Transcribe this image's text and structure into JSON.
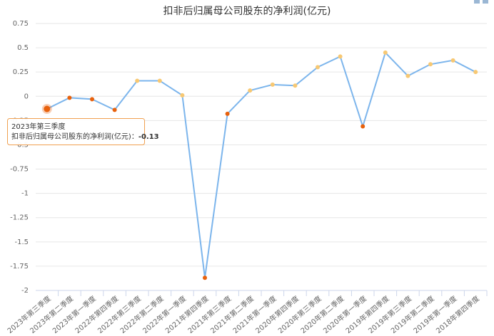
{
  "chart_data": {
    "type": "line",
    "title": "扣非后归属母公司股东的净利润(亿元)",
    "categories": [
      "2023年第三季度",
      "2023年第二季度",
      "2023年第一季度",
      "2022年第四季度",
      "2022年第三季度",
      "2022年第二季度",
      "2022年第一季度",
      "2021年第四季度",
      "2021年第三季度",
      "2021年第二季度",
      "2021年第一季度",
      "2020年第四季度",
      "2020年第三季度",
      "2020年第二季度",
      "2020年第一季度",
      "2019年第四季度",
      "2019年第三季度",
      "2019年第二季度",
      "2019年第一季度",
      "2018年第四季度"
    ],
    "series": [
      {
        "name": "扣非后归属母公司股东的净利润(亿元)",
        "color": "#7cb5ec",
        "values": [
          -0.13,
          -0.015,
          -0.03,
          -0.14,
          0.16,
          0.16,
          0.01,
          -1.87,
          -0.18,
          0.06,
          0.12,
          0.11,
          0.3,
          0.41,
          -0.31,
          0.45,
          0.21,
          0.33,
          0.37,
          0.25
        ]
      }
    ],
    "positive_color": "#f7c873",
    "negative_color": "#e8610c",
    "ylim": [
      -2,
      0.75
    ],
    "yticks": [
      0.75,
      0.5,
      0.25,
      0,
      -0.25,
      -0.5,
      -0.75,
      -1,
      -1.25,
      -1.5,
      -1.75,
      -2
    ],
    "grid": true,
    "tooltip": {
      "index": 0,
      "separator": "："
    }
  }
}
